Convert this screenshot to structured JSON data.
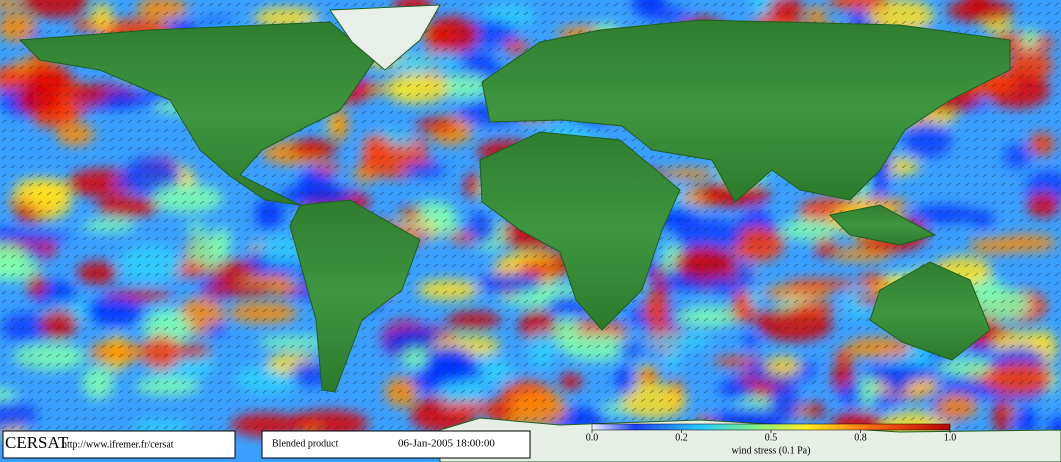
{
  "logo": "CERSAT",
  "url": "http://www.ifremer.fr/cersat",
  "product": "Blended product",
  "date": "06-Jan-2005 18:00:00",
  "colorbar": {
    "ticks": [
      "0.0",
      "0.2",
      "0.5",
      "0.8",
      "1.0"
    ],
    "label": "wind stress (0.1 Pa)"
  }
}
